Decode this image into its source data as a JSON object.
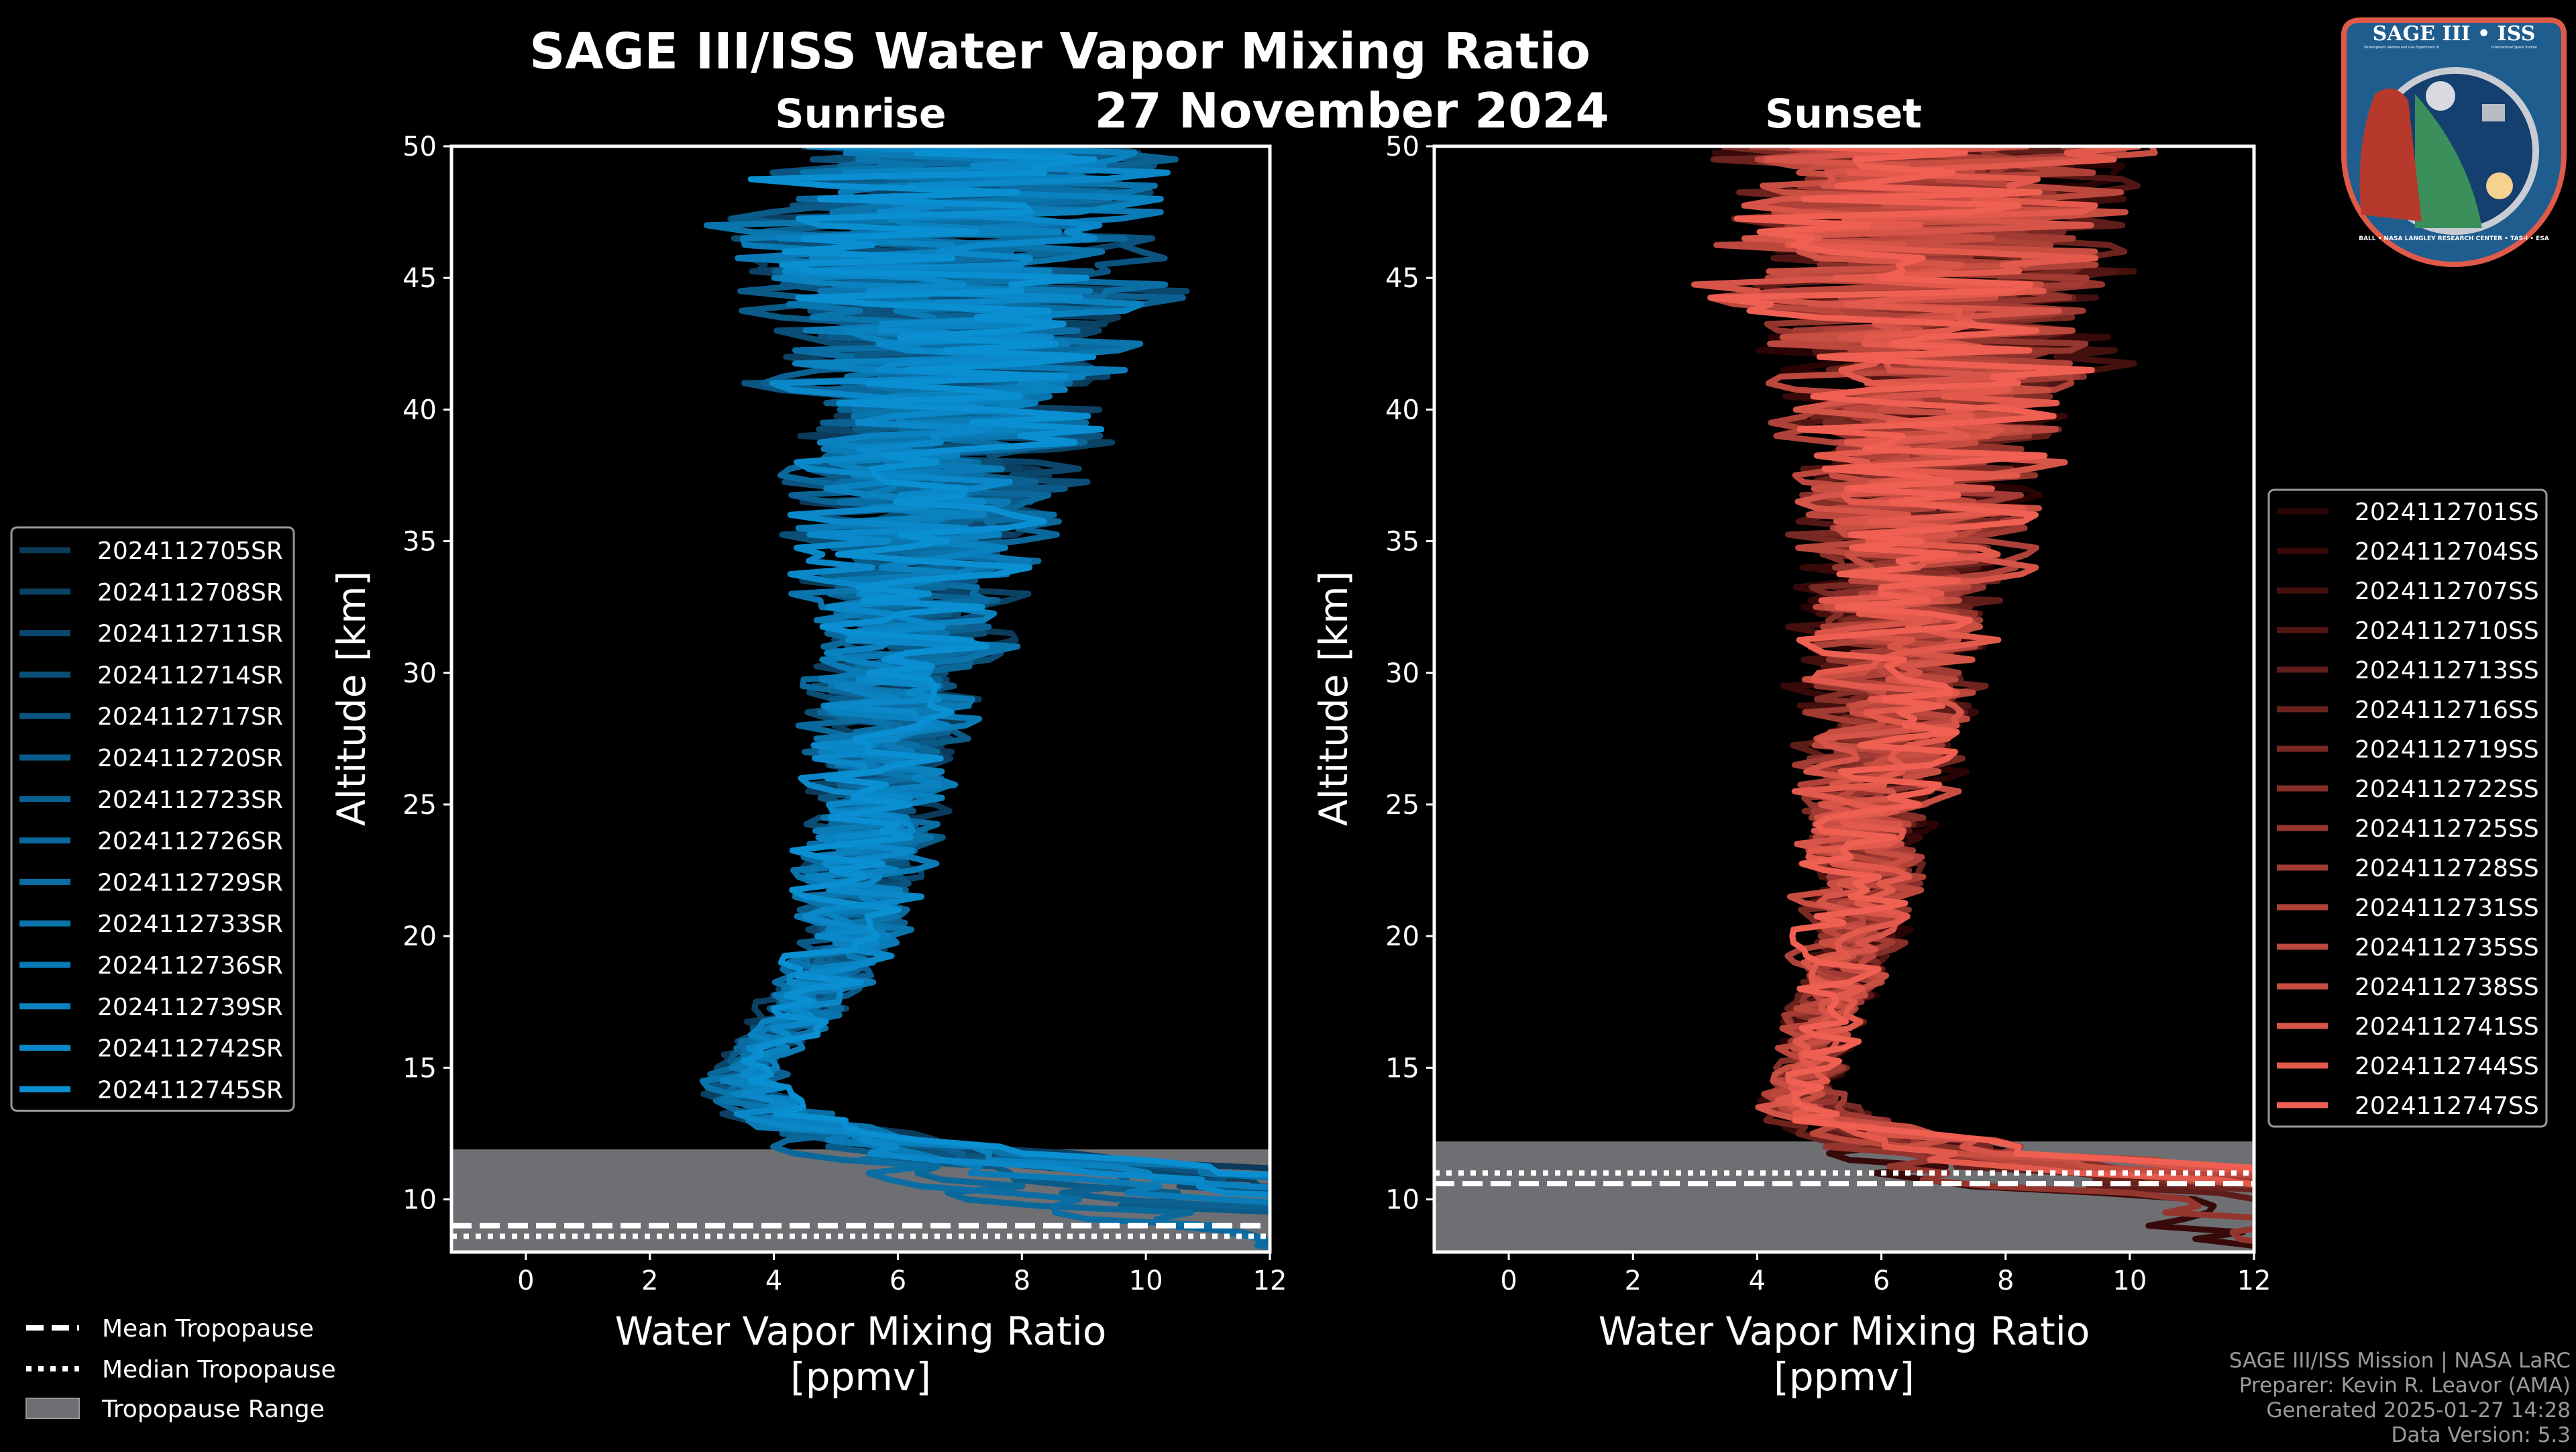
{
  "chart_data": {
    "type": "line",
    "title": "SAGE III/ISS Water Vapor Mixing Ratio",
    "date": "27 November 2024",
    "xlabel": "Water Vapor Mixing Ratio",
    "xunits": "[ppmv]",
    "ylabel": "Altitude [km]",
    "xlim": [
      -1.2,
      12
    ],
    "ylim": [
      8,
      50
    ],
    "xticks": [
      "0",
      "2",
      "4",
      "6",
      "8",
      "10",
      "12"
    ],
    "yticks": [
      "10",
      "15",
      "20",
      "25",
      "30",
      "35",
      "40",
      "45",
      "50"
    ],
    "grid": false,
    "panels": [
      {
        "name": "Sunrise",
        "legend_position": "left-outside",
        "color_dark": "#0b3a5a",
        "color_light": "#0a8fd2",
        "mean_profile": {
          "altitude": [
            8,
            10,
            12,
            13,
            14,
            15,
            17,
            20,
            25,
            30,
            35,
            40,
            45,
            50
          ],
          "value": [
            9,
            7,
            5,
            4,
            3.6,
            3.6,
            4.4,
            5.3,
            5.6,
            6.0,
            6.4,
            6.8,
            6.8,
            6.8
          ]
        },
        "spread_profile": {
          "altitude": [
            8,
            15,
            20,
            25,
            30,
            35,
            40,
            45,
            50
          ],
          "value": [
            2.5,
            0.8,
            1.2,
            1.6,
            2.0,
            2.6,
            3.4,
            4.5,
            4.5
          ]
        },
        "tropopause": {
          "mean": 9.0,
          "median": 8.6,
          "range": [
            7.5,
            11.9
          ]
        },
        "series": [
          "2024112705SR",
          "2024112708SR",
          "2024112711SR",
          "2024112714SR",
          "2024112717SR",
          "2024112720SR",
          "2024112723SR",
          "2024112726SR",
          "2024112729SR",
          "2024112733SR",
          "2024112736SR",
          "2024112739SR",
          "2024112742SR",
          "2024112745SR"
        ]
      },
      {
        "name": "Sunset",
        "legend_position": "right-outside",
        "color_dark": "#2a0404",
        "color_light": "#f06052",
        "mean_profile": {
          "altitude": [
            8,
            10,
            11,
            12,
            13,
            14,
            15,
            17,
            20,
            25,
            30,
            35,
            40,
            45,
            50
          ],
          "value": [
            10,
            8,
            6.5,
            5.5,
            5.0,
            4.8,
            4.9,
            5.1,
            5.5,
            5.8,
            6.1,
            6.4,
            6.8,
            6.8,
            6.8
          ]
        },
        "spread_profile": {
          "altitude": [
            8,
            15,
            20,
            25,
            30,
            35,
            40,
            45,
            50
          ],
          "value": [
            2.5,
            0.7,
            1.1,
            1.6,
            2.0,
            2.4,
            3.2,
            4.5,
            4.5
          ]
        },
        "tropopause": {
          "mean": 10.6,
          "median": 11.0,
          "range": [
            7.5,
            12.2
          ]
        },
        "series": [
          "2024112701SS",
          "2024112704SS",
          "2024112707SS",
          "2024112710SS",
          "2024112713SS",
          "2024112716SS",
          "2024112719SS",
          "2024112722SS",
          "2024112725SS",
          "2024112728SS",
          "2024112731SS",
          "2024112735SS",
          "2024112738SS",
          "2024112741SS",
          "2024112744SS",
          "2024112747SS"
        ]
      }
    ],
    "tropopause_legend": [
      "Mean Tropopause",
      "Median Tropopause",
      "Tropopause Range"
    ]
  },
  "footer": [
    "SAGE III/ISS Mission | NASA LaRC",
    "Preparer: Kevin R. Leavor (AMA)",
    "Generated 2025-01-27 14:28",
    "Data Version: 5.3"
  ],
  "logo": {
    "title": "SAGE III • ISS",
    "subtitle_left": "Stratospheric Aerosol and Gas Experiment III",
    "subtitle_right": "International Space Station",
    "ring": "BALL • NASA LANGLEY RESEARCH CENTER • TAS-I • ESA"
  },
  "colors": {
    "tropo_range": "#6e6f73",
    "frame": "#ffffff",
    "footer": "#9a9a9a"
  }
}
